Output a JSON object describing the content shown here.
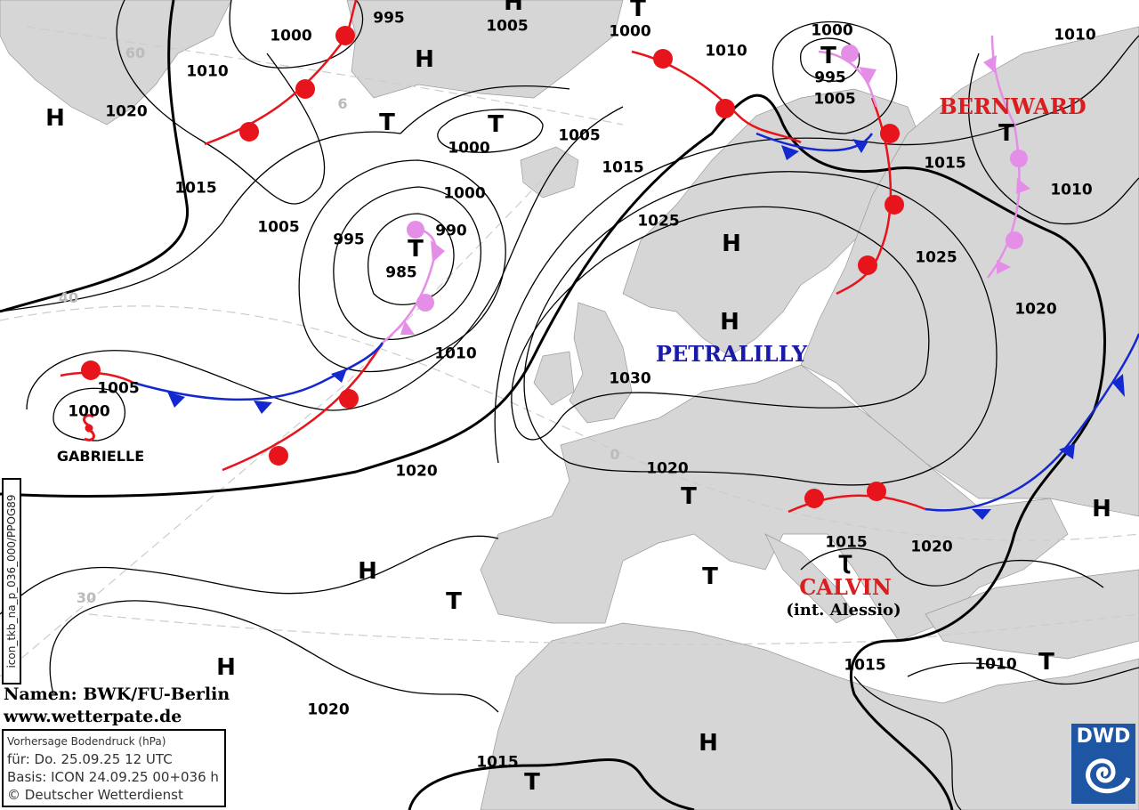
{
  "isobar_labels": [
    "995",
    "1005",
    "1000",
    "1000",
    "1000",
    "1010",
    "1010",
    "1010",
    "995",
    "1020",
    "1005",
    "1005",
    "1000",
    "1015",
    "1015",
    "1015",
    "1010",
    "1000",
    "1025",
    "1005",
    "990",
    "995",
    "985",
    "1025",
    "1020",
    "1010",
    "1030",
    "1005",
    "1000",
    "1020",
    "1020",
    "1015",
    "1020",
    "1015",
    "1010",
    "1020",
    "1015"
  ],
  "pressure_systems": [
    "H",
    "T",
    "H",
    "T",
    "H",
    "T",
    "T",
    "T",
    "H",
    "T",
    "H",
    "T",
    "H",
    "H",
    "T",
    "T",
    "T",
    "H",
    "H",
    "T"
  ],
  "latitude_labels": [
    "60",
    "6",
    "40",
    "30",
    "0"
  ],
  "system_names": {
    "bernward": "BERNWARD",
    "petralilly": "PETRALILLY",
    "gabrielle": "GABRIELLE",
    "calvin": "CALVIN",
    "calvin_alias": "(int. Alessio)"
  },
  "colors": {
    "land": "#d6d6d6",
    "warm_front": "#e8141b",
    "cold_front": "#1428d0",
    "occlusion": "#e58ee8",
    "name_red": "#d81e1e",
    "name_blue": "#1a1aa8"
  },
  "credits": {
    "names": "Namen: BWK/FU-Berlin",
    "website": "www.wetterpate.de"
  },
  "info": {
    "title": "Vorhersage Bodendruck (hPa)",
    "valid": "für:  Do. 25.09.25  12 UTC",
    "base": "Basis: ICON  24.09.25 00+036 h",
    "copyright": "© Deutscher Wetterdienst"
  },
  "product_code": "icon_tkb_na_p_036_000/PPOG89",
  "logo": "DWD"
}
